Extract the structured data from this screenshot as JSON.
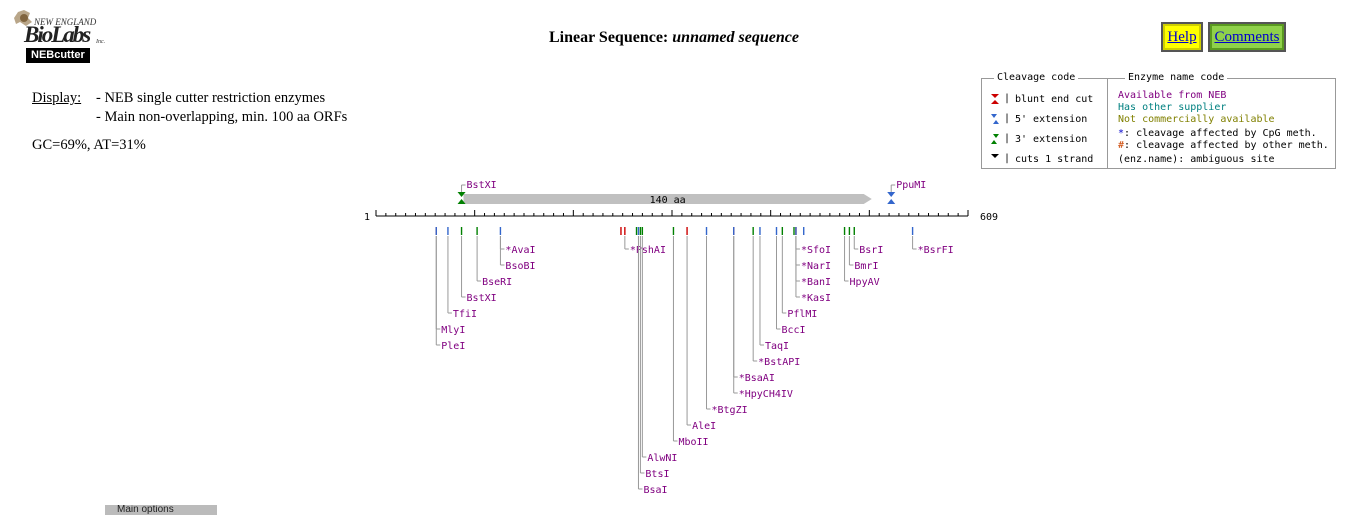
{
  "logo": {
    "top_text": "NEW ENGLAND",
    "main_text": "BioLabs",
    "inc_text": "Inc.",
    "badge_text": "NEBcutter"
  },
  "title": {
    "prefix": "Linear Sequence: ",
    "name": "unnamed sequence"
  },
  "buttons": {
    "help": "Help",
    "comments": "Comments"
  },
  "display": {
    "label": "Display:",
    "line1": "- NEB single cutter restriction enzymes",
    "line2": "- Main non-overlapping, min. 100 aa ORFs"
  },
  "gc_text": "GC=69%, AT=31%",
  "legend": {
    "cleavage_header": "Cleavage code",
    "cleavage_items": [
      "blunt end cut",
      "5' extension",
      "3' extension",
      "cuts 1 strand"
    ],
    "enzyme_header": "Enzyme name code",
    "enzyme_items": [
      {
        "text": "Available from NEB",
        "color": "#800080"
      },
      {
        "text": "Has other supplier",
        "color": "#008080"
      },
      {
        "text": "Not commercially available",
        "color": "#808000"
      },
      {
        "text": "*: cleavage affected by CpG meth.",
        "color": "#000000",
        "mark": "*",
        "mark_color": "#0000cc"
      },
      {
        "text": "#: cleavage affected by other meth.",
        "color": "#000000",
        "mark": "#",
        "mark_color": "#cc4400"
      },
      {
        "text": "(enz.name): ambiguous site",
        "color": "#000000"
      }
    ]
  },
  "colors": {
    "enzyme_neb": "#800080",
    "blunt": "#cc0000",
    "five_prime": "#3366cc",
    "three_prime": "#008000",
    "one_strand": "#000000",
    "orf": "#c0c0c0"
  },
  "sequence": {
    "start_label": "1",
    "end_label": "609",
    "length": 609
  },
  "orf": {
    "label": "140 aa",
    "from": 90,
    "to": 510
  },
  "top_enzymes": [
    {
      "name": "BstXI",
      "pos": 88,
      "type": "3'"
    },
    {
      "name": "PpuMI",
      "pos": 530,
      "type": "5'"
    }
  ],
  "bottom_enzymes": [
    {
      "name": "*AvaI",
      "cut": 128,
      "type": "5'",
      "level": 0,
      "label_anchor": 128
    },
    {
      "name": "BsoBI",
      "cut": 128,
      "type": "5'",
      "level": 1,
      "label_anchor": 128
    },
    {
      "name": "BseRI",
      "cut": 104,
      "type": "3'",
      "level": 2,
      "label_anchor": 104
    },
    {
      "name": "BstXI",
      "cut": 88,
      "type": "3'",
      "level": 3,
      "label_anchor": 88
    },
    {
      "name": "TfiI",
      "cut": 74,
      "type": "5'",
      "level": 4,
      "label_anchor": 74
    },
    {
      "name": "MlyI",
      "cut": 62,
      "type": "blunt",
      "level": 5,
      "label_anchor": 62
    },
    {
      "name": "PleI",
      "cut": 62,
      "type": "5'",
      "level": 6,
      "label_anchor": 62
    },
    {
      "name": "*PshAI",
      "cut": 256,
      "type": "blunt",
      "level": 0,
      "label_anchor": 256
    },
    {
      "name": "*SfoI",
      "cut": 432,
      "type": "blunt",
      "level": 0,
      "label_anchor": 432
    },
    {
      "name": "*NarI",
      "cut": 432,
      "type": "5'",
      "level": 1,
      "label_anchor": 432
    },
    {
      "name": "*BanI",
      "cut": 432,
      "type": "5'",
      "level": 2,
      "label_anchor": 432
    },
    {
      "name": "*KasI",
      "cut": 432,
      "type": "5'",
      "level": 3,
      "label_anchor": 432
    },
    {
      "name": "PflMI",
      "cut": 418,
      "type": "3'",
      "level": 4,
      "label_anchor": 418
    },
    {
      "name": "BccI",
      "cut": 412,
      "type": "5'",
      "level": 5,
      "label_anchor": 412
    },
    {
      "name": "TaqI",
      "cut": 395,
      "type": "5'",
      "level": 6,
      "label_anchor": 395
    },
    {
      "name": "*BstAPI",
      "cut": 388,
      "type": "3'",
      "level": 7,
      "label_anchor": 388
    },
    {
      "name": "*BsaAI",
      "cut": 368,
      "type": "blunt",
      "level": 8,
      "label_anchor": 368
    },
    {
      "name": "*HpyCH4IV",
      "cut": 368,
      "type": "5'",
      "level": 9,
      "label_anchor": 368
    },
    {
      "name": "*BtgZI",
      "cut": 340,
      "type": "5'",
      "level": 10,
      "label_anchor": 340
    },
    {
      "name": "AleI",
      "cut": 320,
      "type": "blunt",
      "level": 11,
      "label_anchor": 320
    },
    {
      "name": "MboII",
      "cut": 306,
      "type": "3'",
      "level": 12,
      "label_anchor": 306
    },
    {
      "name": "AlwNI",
      "cut": 274,
      "type": "3'",
      "level": 13,
      "label_anchor": 274
    },
    {
      "name": "BtsI",
      "cut": 272,
      "type": "3'",
      "level": 14,
      "label_anchor": 272
    },
    {
      "name": "BsaI",
      "cut": 270,
      "type": "5'",
      "level": 15,
      "label_anchor": 270
    },
    {
      "name": "BsrI",
      "cut": 492,
      "type": "3'",
      "level": 0,
      "label_anchor": 492
    },
    {
      "name": "BmrI",
      "cut": 487,
      "type": "3'",
      "level": 1,
      "label_anchor": 487
    },
    {
      "name": "HpyAV",
      "cut": 482,
      "type": "3'",
      "level": 2,
      "label_anchor": 482
    },
    {
      "name": "*BsrFI",
      "cut": 552,
      "type": "5'",
      "level": 0,
      "label_anchor": 552
    }
  ],
  "extra_ticks": [
    {
      "pos": 252,
      "type": "blunt"
    },
    {
      "pos": 268,
      "type": "3'"
    },
    {
      "pos": 440,
      "type": "5'"
    },
    {
      "pos": 430,
      "type": "3'"
    }
  ],
  "bottom_tab_text": "Main options"
}
